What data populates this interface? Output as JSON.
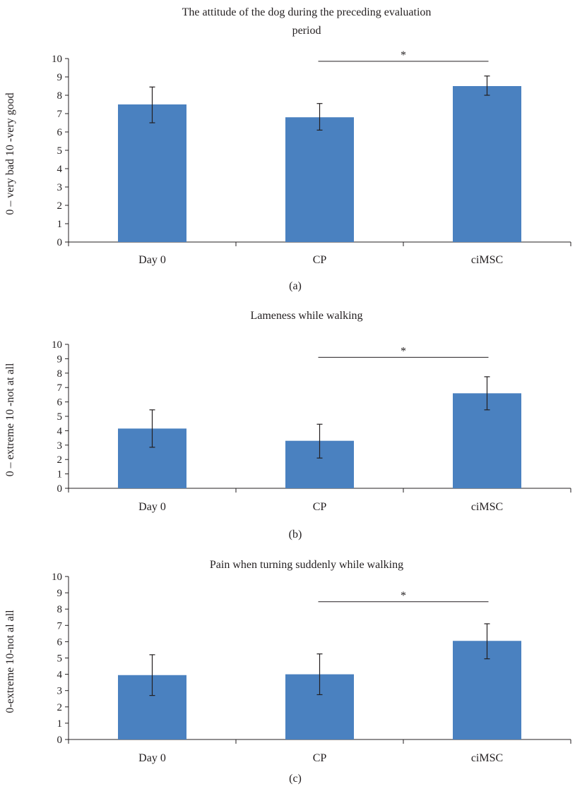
{
  "chart_data": [
    {
      "type": "bar",
      "title": [
        "The attitude of the dog during the preceding evaluation",
        "period"
      ],
      "ylabel": "0 – very bad 10 -very good",
      "categories": [
        "Day 0",
        "CP",
        "ciMSC"
      ],
      "values": [
        7.5,
        6.8,
        8.5
      ],
      "error_low": [
        6.5,
        6.1,
        8.0
      ],
      "error_high": [
        8.45,
        7.55,
        9.05
      ],
      "ylim": [
        0,
        10
      ],
      "yticks": [
        "0",
        "1",
        "2",
        "3",
        "4",
        "5",
        "6",
        "7",
        "8",
        "9",
        "10"
      ],
      "significance": {
        "from": "CP",
        "to": "ciMSC",
        "level": 9.85,
        "label": "*"
      },
      "panel_label": "(a)",
      "bar_color": "#4a81c0"
    },
    {
      "type": "bar",
      "title": [
        "Lameness while walking"
      ],
      "ylabel": "0 – extreme 10 -not at all",
      "categories": [
        "Day 0",
        "CP",
        "ciMSC"
      ],
      "values": [
        4.15,
        3.3,
        6.6
      ],
      "error_low": [
        2.85,
        2.1,
        5.45
      ],
      "error_high": [
        5.45,
        4.45,
        7.75
      ],
      "ylim": [
        0,
        10
      ],
      "yticks": [
        "0",
        "1",
        "2",
        "3",
        "4",
        "5",
        "6",
        "7",
        "8",
        "9",
        "10"
      ],
      "significance": {
        "from": "CP",
        "to": "ciMSC",
        "level": 9.1,
        "label": "*"
      },
      "panel_label": "(b)",
      "bar_color": "#4a81c0"
    },
    {
      "type": "bar",
      "title": [
        "Pain when turning suddenly while walking"
      ],
      "ylabel": "0-extreme 10-not al all",
      "categories": [
        "Day 0",
        "CP",
        "ciMSC"
      ],
      "values": [
        3.95,
        4.0,
        6.05
      ],
      "error_low": [
        2.7,
        2.75,
        4.95
      ],
      "error_high": [
        5.2,
        5.25,
        7.1
      ],
      "ylim": [
        0,
        10
      ],
      "yticks": [
        "0",
        "1",
        "2",
        "3",
        "4",
        "5",
        "6",
        "7",
        "8",
        "9",
        "10"
      ],
      "significance": {
        "from": "CP",
        "to": "ciMSC",
        "level": 8.45,
        "label": "*"
      },
      "panel_label": "(c)",
      "bar_color": "#4a81c0"
    }
  ]
}
